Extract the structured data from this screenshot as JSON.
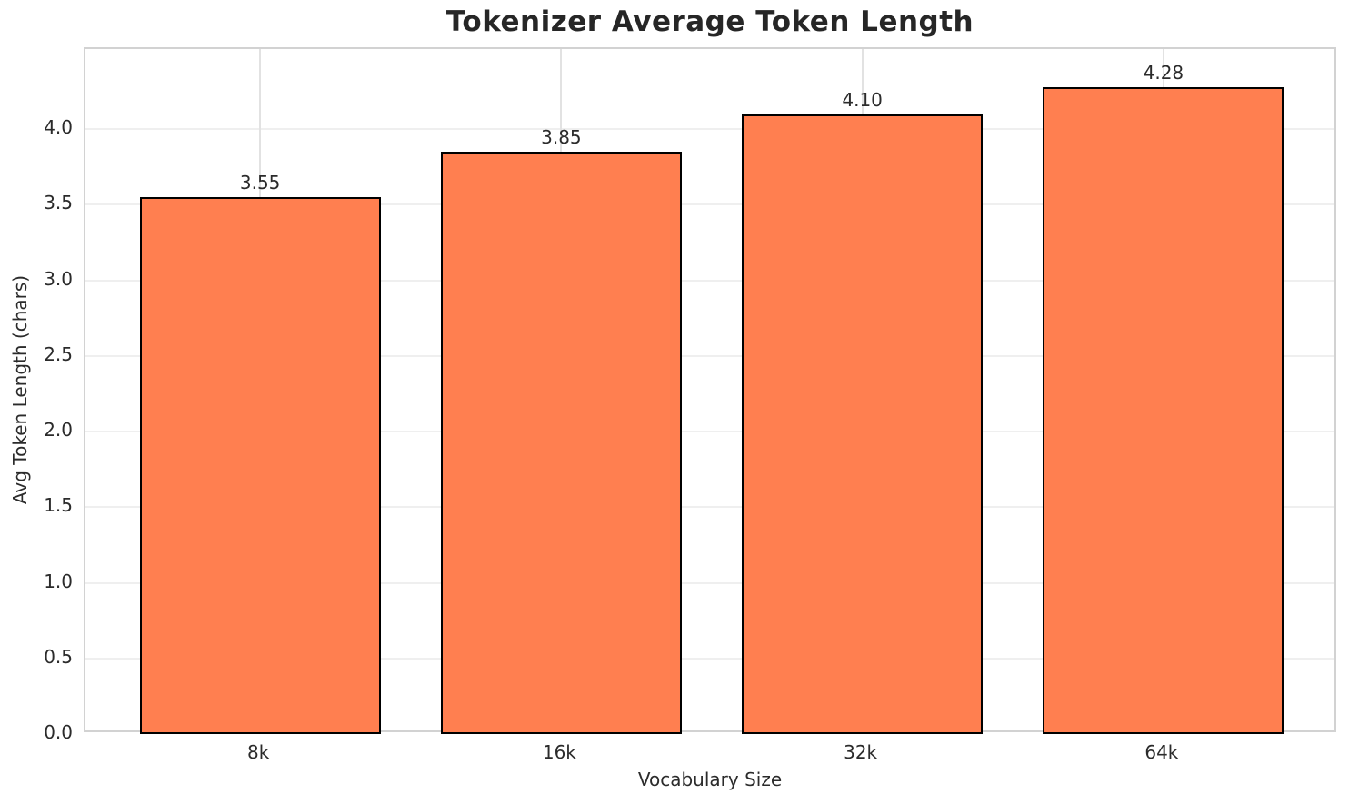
{
  "chart_data": {
    "type": "bar",
    "title": "Tokenizer Average Token Length",
    "xlabel": "Vocabulary Size",
    "ylabel": "Avg Token Length (chars)",
    "categories": [
      "8k",
      "16k",
      "32k",
      "64k"
    ],
    "values": [
      3.55,
      3.85,
      4.1,
      4.28
    ],
    "value_labels": [
      "3.55",
      "3.85",
      "4.10",
      "4.28"
    ],
    "yticks": [
      0.0,
      0.5,
      1.0,
      1.5,
      2.0,
      2.5,
      3.0,
      3.5,
      4.0
    ],
    "ytick_labels": [
      "0.0",
      "0.5",
      "1.0",
      "1.5",
      "2.0",
      "2.5",
      "3.0",
      "3.5",
      "4.0"
    ],
    "ylim": [
      0,
      4.53
    ],
    "xlim": [
      -0.58,
      3.58
    ],
    "bar_width_units": 0.8,
    "grid": true,
    "legend": null,
    "colors": {
      "bar_fill": "#FF7F50",
      "bar_edge": "#000000",
      "grid_h": "#efefef",
      "grid_v": "#e2e2e2",
      "spine": "#d2d2d2",
      "text": "#2b2b2b",
      "title_text": "#262626",
      "background": "#ffffff"
    }
  }
}
